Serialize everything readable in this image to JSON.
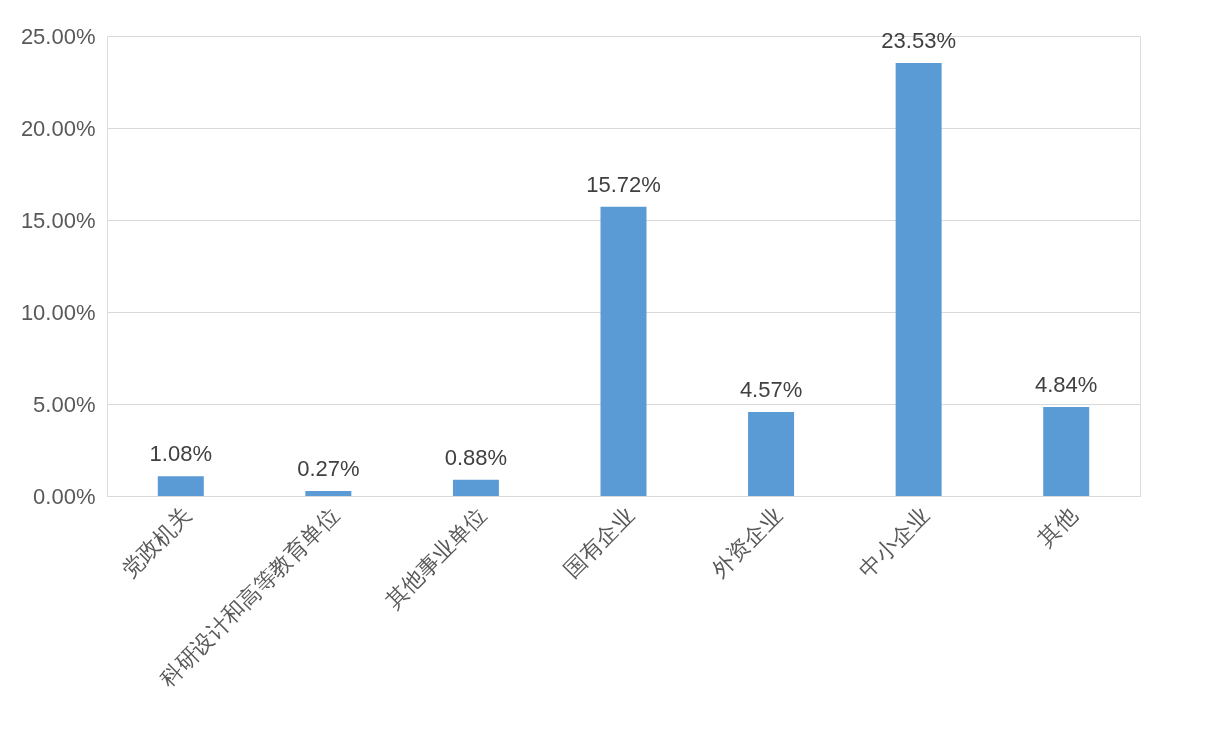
{
  "chart_data": {
    "type": "bar",
    "categories": [
      "党政机关",
      "科研设计和高等教育单位",
      "其他事业单位",
      "国有企业",
      "外资企业",
      "中小企业",
      "其他"
    ],
    "values": [
      1.08,
      0.27,
      0.88,
      15.72,
      4.57,
      23.53,
      4.84
    ],
    "value_labels": [
      "1.08%",
      "0.27%",
      "0.88%",
      "15.72%",
      "4.57%",
      "23.53%",
      "4.84%"
    ],
    "color": "#5b9bd5",
    "ylim": [
      0,
      25
    ],
    "yticks": [
      {
        "value": 0,
        "label": "0.00%"
      },
      {
        "value": 5,
        "label": "5.00%"
      },
      {
        "value": 10,
        "label": "10.00%"
      },
      {
        "value": 15,
        "label": "15.00%"
      },
      {
        "value": 20,
        "label": "20.00%"
      },
      {
        "value": 25,
        "label": "25.00%"
      }
    ],
    "grid": "y"
  }
}
